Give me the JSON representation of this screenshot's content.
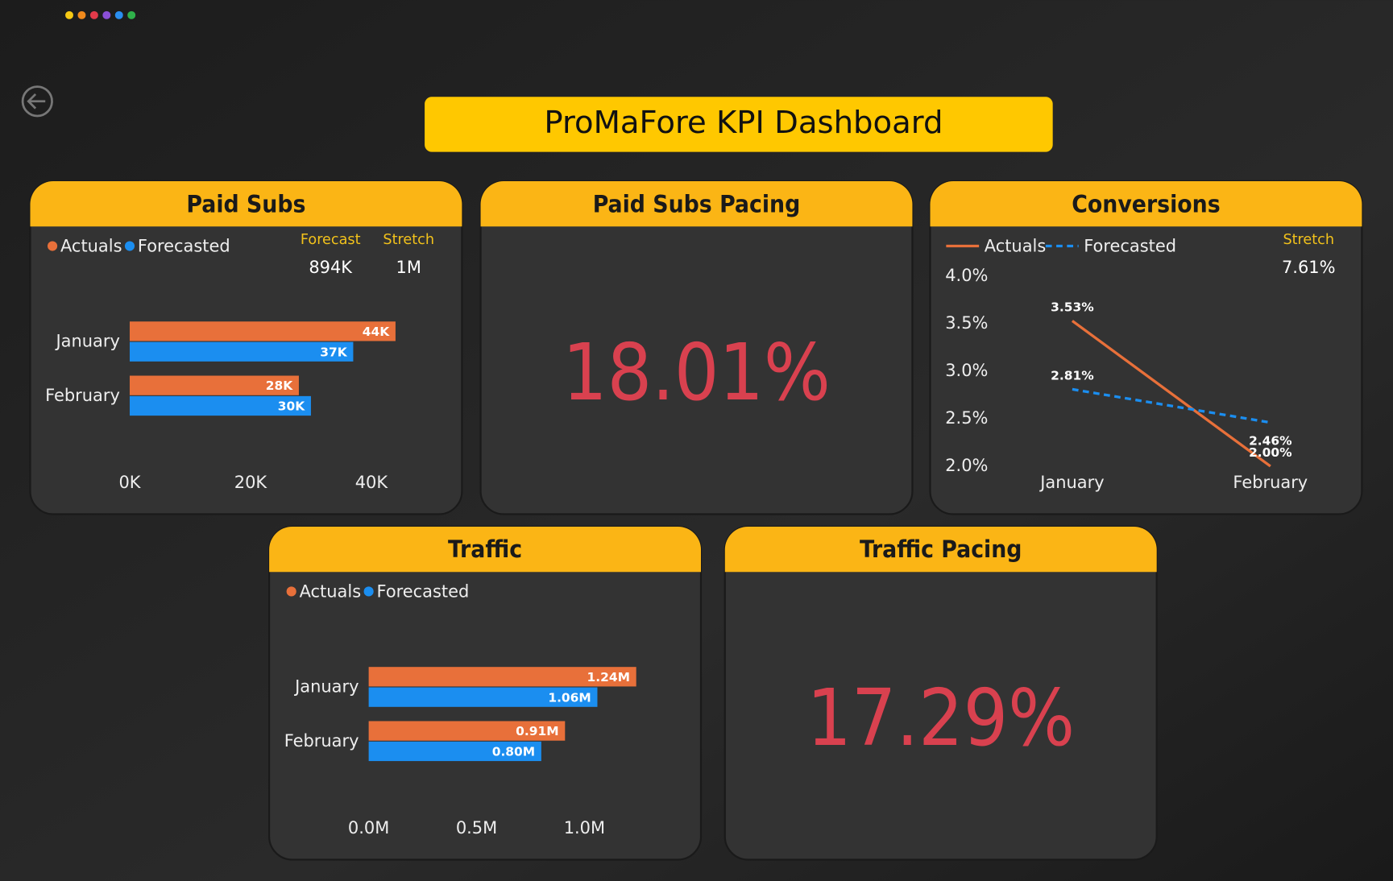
{
  "dashboard": {
    "title": "ProMaFore KPI Dashboard"
  },
  "chart_data": [
    {
      "type": "bar",
      "title": "Paid Subs",
      "categories": [
        "January",
        "February"
      ],
      "series": [
        {
          "name": "Actuals",
          "color": "#e8703a",
          "values": [
            44000,
            28000
          ],
          "value_labels": [
            "44K",
            "28K"
          ]
        },
        {
          "name": "Forecasted",
          "color": "#1b8ef0",
          "values": [
            37000,
            30000
          ],
          "value_labels": [
            "37K",
            "30K"
          ]
        }
      ],
      "xlim": [
        0,
        50000
      ],
      "xticks": [
        {
          "value": 0,
          "label": "0K"
        },
        {
          "value": 20000,
          "label": "20K"
        },
        {
          "value": 40000,
          "label": "40K"
        }
      ],
      "stats": [
        {
          "label": "Forecast",
          "value": "894K"
        },
        {
          "label": "Stretch",
          "value": "1M"
        }
      ]
    },
    {
      "type": "card",
      "title": "Paid Subs Pacing",
      "value": 18.01,
      "value_label": "18.01%",
      "color": "#d9414f"
    },
    {
      "type": "line",
      "title": "Conversions",
      "categories": [
        "January",
        "February"
      ],
      "series": [
        {
          "name": "Actuals",
          "color": "#e8703a",
          "line_style": "solid",
          "values": [
            3.53,
            2.0
          ],
          "value_labels": [
            "3.53%",
            "2.00%"
          ]
        },
        {
          "name": "Forecasted",
          "color": "#1b8ef0",
          "line_style": "dashed",
          "values": [
            2.81,
            2.46
          ],
          "value_labels": [
            "2.81%",
            "2.46%"
          ]
        }
      ],
      "ylim": [
        2.0,
        4.0
      ],
      "yticks": [
        {
          "value": 2.0,
          "label": "2.0%"
        },
        {
          "value": 2.5,
          "label": "2.5%"
        },
        {
          "value": 3.0,
          "label": "3.0%"
        },
        {
          "value": 3.5,
          "label": "3.5%"
        },
        {
          "value": 4.0,
          "label": "4.0%"
        }
      ],
      "stats": [
        {
          "label": "Stretch",
          "value": "7.61%"
        }
      ]
    },
    {
      "type": "bar",
      "title": "Traffic",
      "categories": [
        "January",
        "February"
      ],
      "series": [
        {
          "name": "Actuals",
          "color": "#e8703a",
          "values": [
            1240000,
            910000
          ],
          "value_labels": [
            "1.24M",
            "0.91M"
          ]
        },
        {
          "name": "Forecasted",
          "color": "#1b8ef0",
          "values": [
            1060000,
            800000
          ],
          "value_labels": [
            "1.06M",
            "0.80M"
          ]
        }
      ],
      "xlim": [
        0,
        1400000
      ],
      "xticks": [
        {
          "value": 0,
          "label": "0.0M"
        },
        {
          "value": 500000,
          "label": "0.5M"
        },
        {
          "value": 1000000,
          "label": "1.0M"
        }
      ]
    },
    {
      "type": "card",
      "title": "Traffic Pacing",
      "value": 17.29,
      "value_label": "17.29%",
      "color": "#d9414f"
    }
  ]
}
